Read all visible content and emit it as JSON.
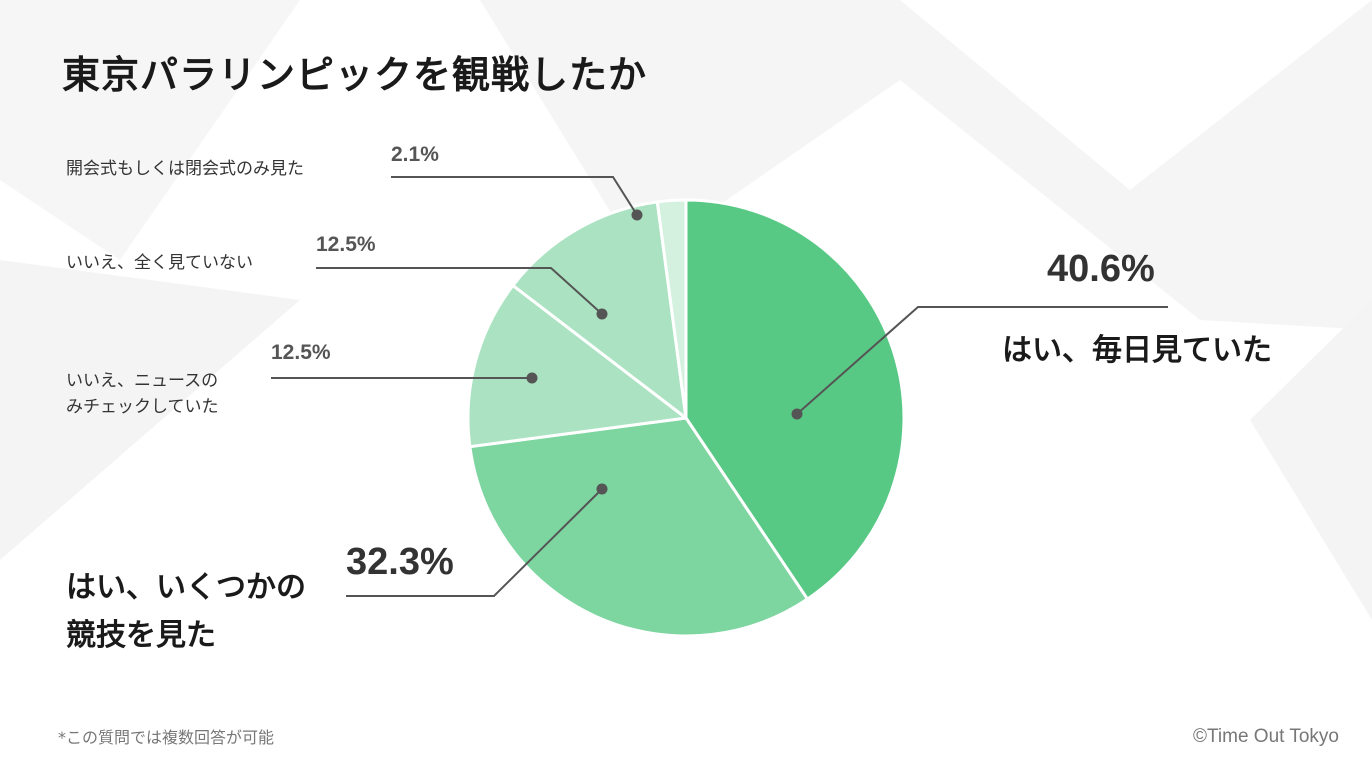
{
  "title": "東京パラリンピックを観戦したか",
  "footnote": "*この質問では複数回答が可能",
  "credit": "©Time Out Tokyo",
  "colors": {
    "slice_dark": "#58c985",
    "slice_mid": "#7dd5a0",
    "slice_light": "#abe3c2",
    "slice_lightest": "#d4f1df",
    "leader_line": "#555555"
  },
  "chart_data": {
    "type": "pie",
    "title": "東京パラリンピックを観戦したか",
    "start": "top, clockwise",
    "slices": [
      {
        "label": "はい、毎日見ていた",
        "value": 40.6,
        "display": "40.6%"
      },
      {
        "label": "はい、いくつかの競技を見た",
        "label_lines": [
          "はい、いくつかの",
          "競技を見た"
        ],
        "value": 32.3,
        "display": "32.3%"
      },
      {
        "label": "いいえ、ニュースのみチェックしていた",
        "label_lines": [
          "いいえ、ニュースの",
          "みチェックしていた"
        ],
        "value": 12.5,
        "display": "12.5%"
      },
      {
        "label": "いいえ、全く見ていない",
        "value": 12.5,
        "display": "12.5%"
      },
      {
        "label": "開会式もしくは閉会式のみ見た",
        "value": 2.1,
        "display": "2.1%"
      }
    ]
  }
}
